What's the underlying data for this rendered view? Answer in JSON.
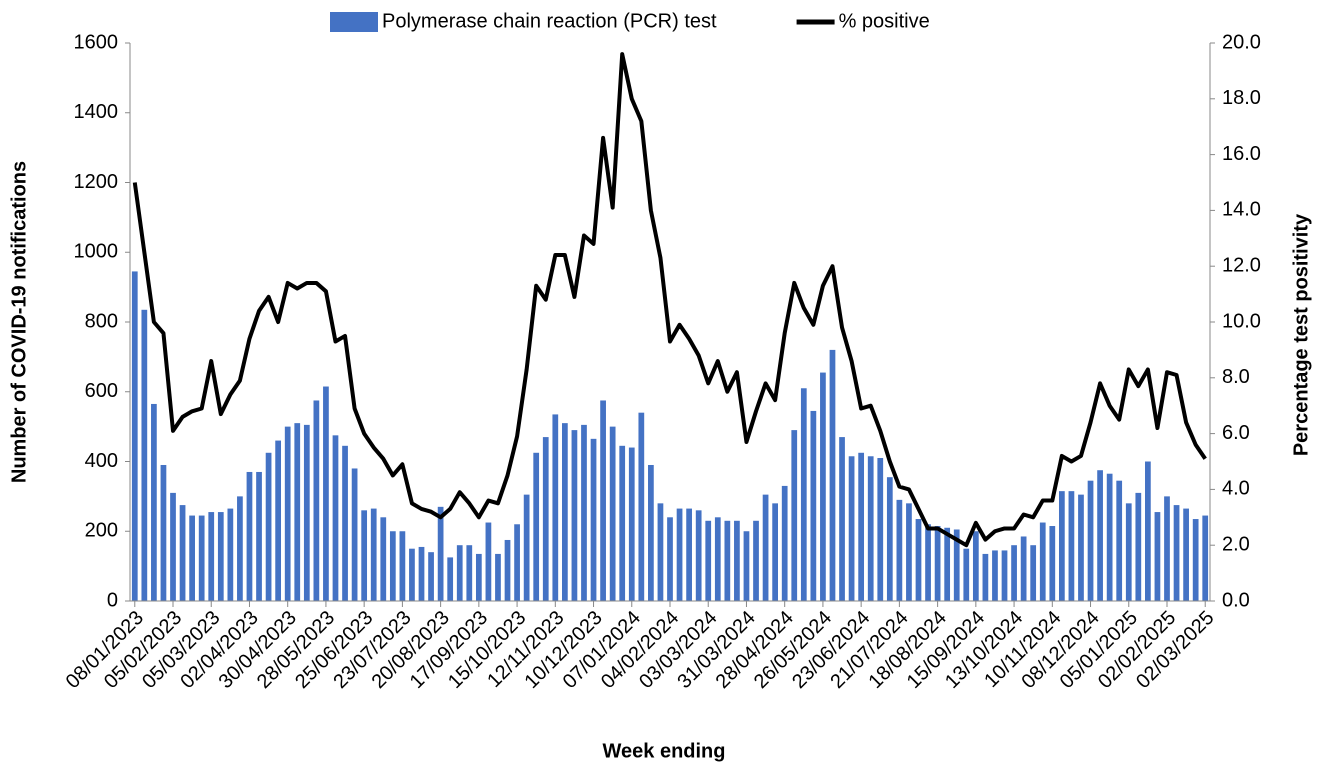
{
  "chart_data": {
    "type": "bar+line",
    "x_label": "Week ending",
    "y_label": "Number of COVID-19 notifications",
    "y2_label": "Percentage test positivity",
    "categories": [
      "08/01/2023",
      null,
      null,
      null,
      "05/02/2023",
      null,
      null,
      null,
      "05/03/2023",
      null,
      null,
      null,
      "02/04/2023",
      null,
      null,
      null,
      "30/04/2023",
      null,
      null,
      null,
      "28/05/2023",
      null,
      null,
      null,
      "25/06/2023",
      null,
      null,
      null,
      "23/07/2023",
      null,
      null,
      null,
      "20/08/2023",
      null,
      null,
      null,
      "17/09/2023",
      null,
      null,
      null,
      "15/10/2023",
      null,
      null,
      null,
      "12/11/2023",
      null,
      null,
      null,
      "10/12/2023",
      null,
      null,
      null,
      "07/01/2024",
      null,
      null,
      null,
      "04/02/2024",
      null,
      null,
      null,
      "03/03/2024",
      null,
      null,
      null,
      "31/03/2024",
      null,
      null,
      null,
      "28/04/2024",
      null,
      null,
      null,
      "26/05/2024",
      null,
      null,
      null,
      "23/06/2024",
      null,
      null,
      null,
      "21/07/2024",
      null,
      null,
      null,
      "18/08/2024",
      null,
      null,
      null,
      "15/09/2024",
      null,
      null,
      null,
      "13/10/2024",
      null,
      null,
      null,
      "10/11/2024",
      null,
      null,
      null,
      "08/12/2024",
      null,
      null,
      null,
      "05/01/2025",
      null,
      null,
      null,
      "02/02/2025",
      null,
      null,
      null,
      "02/03/2025"
    ],
    "series": [
      {
        "name": "Polymerase chain reaction (PCR) test",
        "kind": "bar",
        "color": "#4472c4",
        "values": [
          945,
          835,
          565,
          390,
          310,
          275,
          245,
          245,
          255,
          255,
          265,
          300,
          370,
          370,
          425,
          460,
          500,
          510,
          505,
          575,
          615,
          475,
          445,
          380,
          260,
          265,
          240,
          200,
          200,
          150,
          155,
          140,
          270,
          125,
          160,
          160,
          135,
          225,
          135,
          175,
          220,
          305,
          425,
          470,
          535,
          510,
          490,
          505,
          465,
          575,
          500,
          445,
          440,
          540,
          390,
          280,
          240,
          265,
          265,
          260,
          230,
          240,
          230,
          230,
          200,
          230,
          305,
          280,
          330,
          490,
          610,
          545,
          655,
          720,
          470,
          415,
          425,
          415,
          410,
          355,
          290,
          280,
          235,
          220,
          215,
          210,
          205,
          150,
          200,
          135,
          145,
          145,
          160,
          185,
          160,
          225,
          215,
          315,
          315,
          305,
          345,
          375,
          365,
          345,
          280,
          310,
          400,
          255,
          300,
          275,
          265,
          235,
          245
        ]
      },
      {
        "name": "% positive",
        "kind": "line",
        "axis": "y2",
        "color": "#000000",
        "values": [
          15.0,
          12.5,
          10.0,
          9.6,
          6.1,
          6.6,
          6.8,
          6.9,
          8.6,
          6.7,
          7.4,
          7.9,
          9.4,
          10.4,
          10.9,
          10.0,
          11.4,
          11.2,
          11.4,
          11.4,
          11.1,
          9.3,
          9.5,
          6.9,
          6.0,
          5.5,
          5.1,
          4.5,
          4.9,
          3.5,
          3.3,
          3.2,
          3.0,
          3.3,
          3.9,
          3.5,
          3.0,
          3.6,
          3.5,
          4.5,
          5.9,
          8.3,
          11.3,
          10.8,
          12.4,
          12.4,
          10.9,
          13.1,
          12.8,
          16.6,
          14.1,
          19.6,
          18.0,
          17.2,
          14.0,
          12.3,
          9.3,
          9.9,
          9.4,
          8.8,
          7.8,
          8.6,
          7.5,
          8.2,
          5.7,
          6.8,
          7.8,
          7.2,
          9.6,
          11.4,
          10.5,
          9.9,
          11.3,
          12.0,
          9.8,
          8.6,
          6.9,
          7.0,
          6.1,
          5.0,
          4.1,
          4.0,
          3.3,
          2.6,
          2.6,
          2.4,
          2.2,
          2.0,
          2.8,
          2.2,
          2.5,
          2.6,
          2.6,
          3.1,
          3.0,
          3.6,
          3.6,
          5.2,
          5.0,
          5.2,
          6.4,
          7.8,
          7.0,
          6.5,
          8.3,
          7.7,
          8.3,
          6.2,
          8.2,
          8.1,
          6.4,
          5.6,
          5.1
        ]
      }
    ],
    "ylim": [
      0,
      1600
    ],
    "yticks": [
      0,
      200,
      400,
      600,
      800,
      1000,
      1200,
      1400,
      1600
    ],
    "y2lim": [
      0,
      20
    ],
    "y2ticks": [
      {
        "value": 0,
        "label": "0.0"
      },
      {
        "value": 2,
        "label": "2.0"
      },
      {
        "value": 4,
        "label": "4.0"
      },
      {
        "value": 6,
        "label": "6.0"
      },
      {
        "value": 8,
        "label": "8.0"
      },
      {
        "value": 10,
        "label": "10.0"
      },
      {
        "value": 12,
        "label": "12.0"
      },
      {
        "value": 14,
        "label": "14.0"
      },
      {
        "value": 16,
        "label": "16.0"
      },
      {
        "value": 18,
        "label": "18.0"
      },
      {
        "value": 20,
        "label": "20.0"
      }
    ],
    "grid": false,
    "legend": "top"
  }
}
